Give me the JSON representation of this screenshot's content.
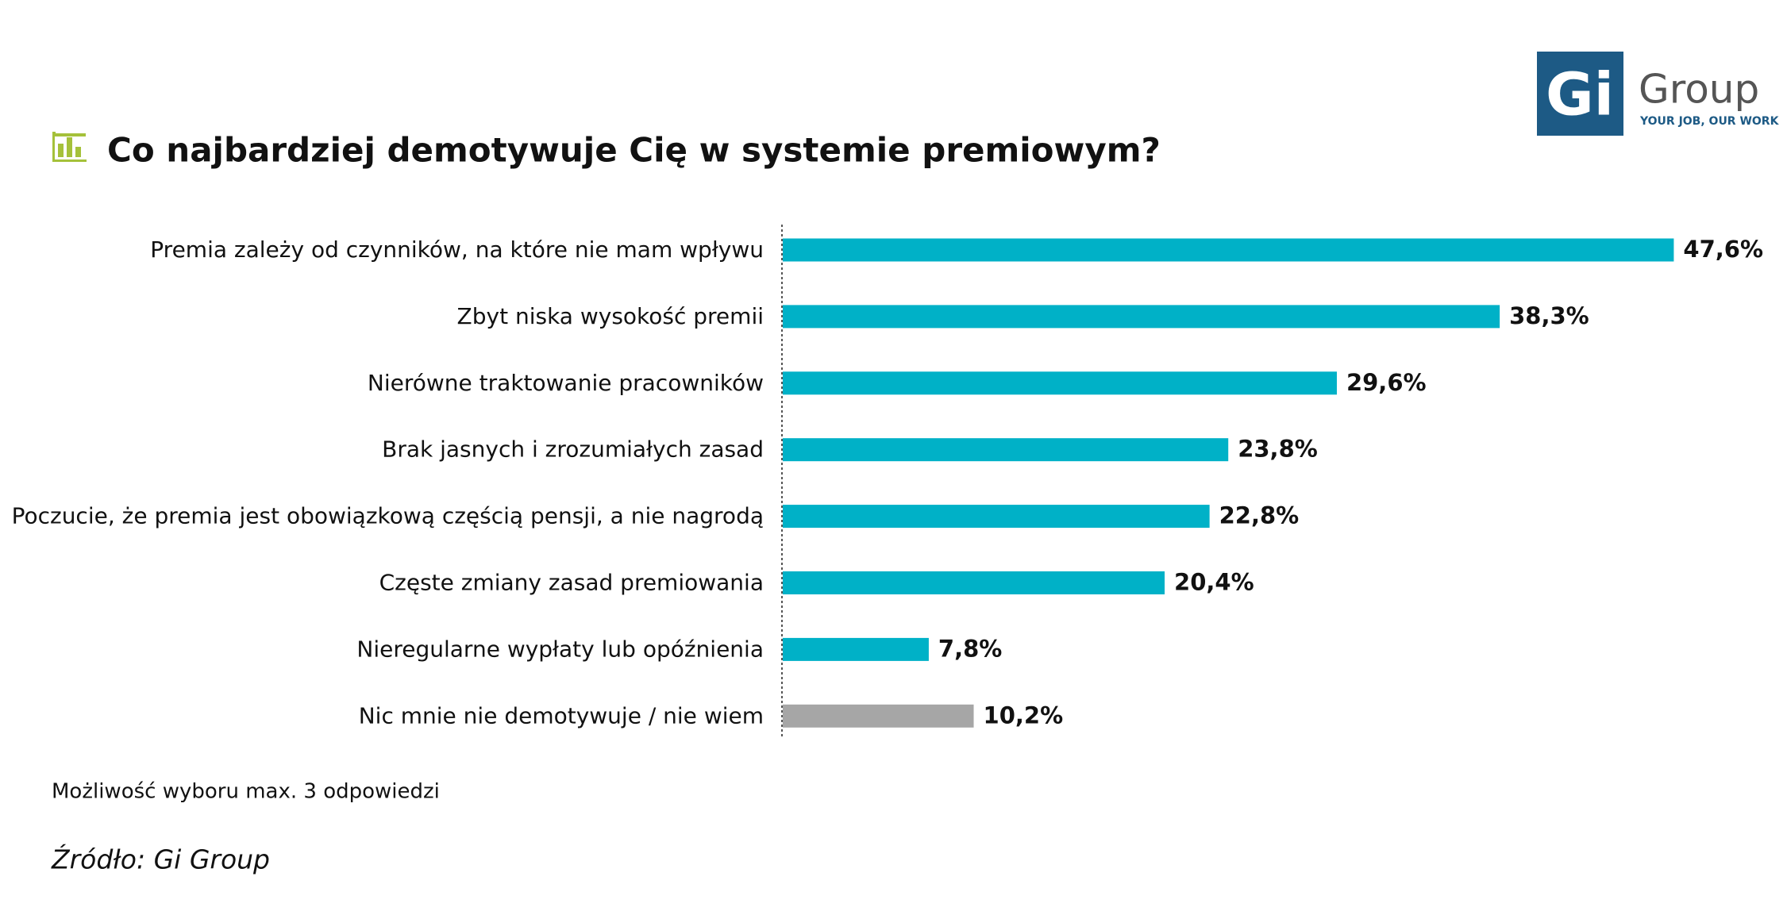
{
  "chart_data": {
    "type": "bar",
    "orientation": "horizontal",
    "title": "Co najbardziej demotywuje Cię w systemie premiowym?",
    "categories": [
      "Premia zależy od czynników, na które nie mam wpływu",
      "Zbyt niska wysokość premii",
      "Nierówne traktowanie pracowników",
      "Brak jasnych i zrozumiałych zasad",
      "Poczucie, że premia jest obowiązkową częścią pensji, a nie nagrodą",
      "Częste zmiany zasad premiowania",
      "Nieregularne wypłaty lub opóźnienia",
      "Nic mnie nie demotywuje / nie wiem"
    ],
    "values": [
      47.6,
      38.3,
      29.6,
      23.8,
      22.8,
      20.4,
      7.8,
      10.2
    ],
    "value_labels": [
      "47,6%",
      "38,3%",
      "29,6%",
      "23,8%",
      "22,8%",
      "20,4%",
      "7,8%",
      "10,2%"
    ],
    "colors": [
      "#00b1c7",
      "#00b1c7",
      "#00b1c7",
      "#00b1c7",
      "#00b1c7",
      "#00b1c7",
      "#00b1c7",
      "#a6a6a6"
    ],
    "xlim": [
      0,
      50
    ],
    "note": "Możliwość wyboru max. 3 odpowiedzi",
    "source": "Źródło: Gi Group"
  },
  "logo": {
    "mark": "Gi",
    "name": "Group",
    "tagline": "YOUR JOB, OUR WORK"
  }
}
